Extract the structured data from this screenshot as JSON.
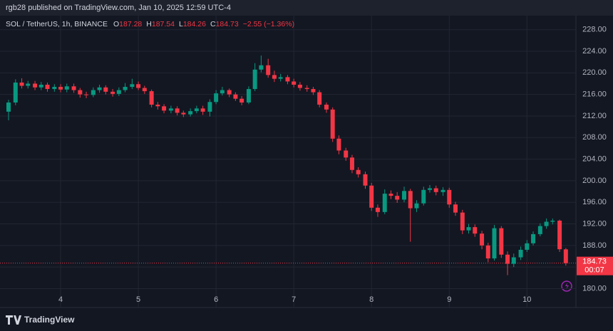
{
  "header": {
    "publisher": "rgb28 published on TradingView.com, Jan 10, 2025 12:59 UTC-4",
    "brand": "TradingView"
  },
  "chart_data": {
    "type": "candlestick",
    "symbol": "SOL / TetherUS, 1h, BINANCE",
    "ohlc_labels": [
      "O",
      "H",
      "L",
      "C"
    ],
    "change": "−2.55 (−1.36%)",
    "countdown": "00:07",
    "up_color": "#089981",
    "down_color": "#f23645",
    "grid": true,
    "xlim": [
      3.22,
      10.63
    ],
    "xticks": [
      4,
      5,
      6,
      7,
      8,
      9,
      10
    ],
    "ylim": [
      176.5,
      230.6
    ],
    "yticks": [
      {
        "value": 180,
        "label": "180.00"
      },
      {
        "value": 184,
        "label": "184.00"
      },
      {
        "value": 188,
        "label": "188.00"
      },
      {
        "value": 192,
        "label": "192.00"
      },
      {
        "value": 196,
        "label": "196.00"
      },
      {
        "value": 200,
        "label": "200.00"
      },
      {
        "value": 204,
        "label": "204.00"
      },
      {
        "value": 208,
        "label": "208.00"
      },
      {
        "value": 212,
        "label": "212.00"
      },
      {
        "value": 216,
        "label": "216.00"
      },
      {
        "value": 220,
        "label": "220.00"
      },
      {
        "value": 224,
        "label": "224.00"
      },
      {
        "value": 228,
        "label": "228.00"
      }
    ],
    "x": [
      3.33,
      3.42,
      3.5,
      3.58,
      3.67,
      3.75,
      3.83,
      3.92,
      4,
      4.08,
      4.17,
      4.25,
      4.33,
      4.42,
      4.5,
      4.58,
      4.67,
      4.75,
      4.83,
      4.92,
      5,
      5.08,
      5.17,
      5.25,
      5.33,
      5.42,
      5.5,
      5.58,
      5.67,
      5.75,
      5.83,
      5.92,
      6,
      6.08,
      6.17,
      6.25,
      6.33,
      6.42,
      6.5,
      6.58,
      6.67,
      6.75,
      6.83,
      6.92,
      7,
      7.08,
      7.17,
      7.25,
      7.33,
      7.42,
      7.5,
      7.58,
      7.67,
      7.75,
      7.83,
      7.92,
      8,
      8.08,
      8.17,
      8.25,
      8.33,
      8.42,
      8.5,
      8.58,
      8.67,
      8.75,
      8.83,
      8.92,
      9,
      9.08,
      9.17,
      9.25,
      9.33,
      9.42,
      9.5,
      9.58,
      9.67,
      9.75,
      9.83,
      9.92,
      10,
      10.08,
      10.17,
      10.25,
      10.33,
      10.42,
      10.5
    ],
    "open": [
      212.8,
      214.5,
      218.2,
      217.6,
      218.0,
      217.3,
      217.8,
      217.0,
      217.4,
      216.9,
      217.5,
      216.8,
      216.0,
      215.9,
      216.8,
      217.3,
      216.5,
      216.1,
      216.8,
      217.4,
      217.9,
      217.2,
      216.6,
      214.1,
      213.8,
      213.0,
      213.4,
      212.6,
      212.3,
      212.9,
      213.4,
      212.8,
      214.6,
      216.2,
      216.8,
      216.0,
      215.2,
      214.5,
      217.0,
      220.6,
      221.4,
      219.6,
      218.9,
      219.2,
      218.4,
      217.8,
      217.2,
      217.0,
      216.4,
      214.1,
      213.2,
      207.8,
      205.6,
      204.3,
      202.0,
      201.2,
      199.1,
      195.0,
      194.2,
      197.6,
      197.2,
      196.5,
      198.1,
      194.9,
      195.8,
      198.3,
      198.6,
      197.9,
      198.3,
      195.6,
      194.1,
      190.8,
      191.4,
      190.2,
      188.0,
      185.6,
      191.2,
      186.3,
      184.6,
      185.8,
      187.2,
      188.4,
      190.1,
      191.6,
      192.4,
      192.6,
      187.28
    ],
    "high": [
      215,
      218.8,
      219,
      218.5,
      218.5,
      218.3,
      218.2,
      217.9,
      217.9,
      218,
      218,
      217.2,
      216.5,
      217.3,
      217.8,
      217.7,
      217,
      217.3,
      218.1,
      218.9,
      218.4,
      217.6,
      216.9,
      214.6,
      214.2,
      213.9,
      213.8,
      213,
      213.4,
      213.9,
      213.9,
      215.1,
      216.8,
      217.4,
      217.1,
      216.4,
      215.7,
      217.5,
      221.8,
      223.2,
      222.6,
      220.4,
      219.8,
      219.6,
      218.9,
      218.3,
      217.7,
      217.4,
      216.8,
      214.5,
      213.6,
      208.4,
      206.1,
      204.8,
      202.5,
      201.7,
      199.6,
      195.6,
      198.4,
      198.2,
      197.9,
      198.9,
      198.5,
      196.4,
      198.9,
      199.2,
      199.1,
      198.8,
      198.7,
      196.1,
      194.6,
      192,
      191.9,
      190.7,
      188.5,
      191.8,
      191.6,
      186.9,
      186.5,
      187.8,
      189,
      190.6,
      192.1,
      193,
      193,
      192.8,
      187.54
    ],
    "low": [
      211.2,
      214,
      217.1,
      217.1,
      216.8,
      216.8,
      216.5,
      216.5,
      216.4,
      216.4,
      216.3,
      215.4,
      215.3,
      215.5,
      216.3,
      216,
      215.6,
      215.7,
      216.4,
      217,
      216.8,
      216.1,
      213.6,
      213.2,
      212.5,
      212.5,
      212.1,
      211.8,
      211.9,
      212.5,
      212.2,
      211.9,
      214.2,
      215.8,
      215.5,
      214.8,
      214,
      214.2,
      216.6,
      220.1,
      219.1,
      218.3,
      218.4,
      217.9,
      217.3,
      216.7,
      216.5,
      215.9,
      213.6,
      212.6,
      207.2,
      204.9,
      203.7,
      201.4,
      200.6,
      198.5,
      194.4,
      193.3,
      193.8,
      196.6,
      195.9,
      196,
      188.7,
      194.2,
      195.4,
      197.8,
      197.3,
      197.2,
      195,
      193.5,
      190.1,
      190.2,
      189.6,
      187.3,
      184.9,
      185.2,
      185.7,
      182.5,
      184,
      185.3,
      186.8,
      188,
      189.7,
      191.1,
      191.9,
      186.8,
      184.26
    ],
    "close": [
      214.5,
      218.2,
      217.6,
      218.0,
      217.3,
      217.8,
      217.0,
      217.4,
      216.9,
      217.5,
      216.8,
      216.0,
      215.9,
      216.8,
      217.3,
      216.5,
      216.1,
      216.8,
      217.4,
      217.9,
      217.2,
      216.6,
      214.1,
      213.8,
      213.0,
      213.4,
      212.6,
      212.3,
      212.9,
      213.4,
      212.8,
      214.6,
      216.2,
      216.8,
      216.0,
      215.2,
      214.5,
      217.0,
      220.6,
      221.4,
      219.6,
      218.9,
      219.2,
      218.4,
      217.8,
      217.2,
      217.0,
      216.4,
      214.1,
      213.2,
      207.8,
      205.6,
      204.3,
      202.0,
      201.2,
      199.1,
      195.0,
      194.2,
      197.6,
      197.2,
      196.5,
      198.1,
      194.9,
      195.8,
      198.3,
      198.6,
      197.9,
      198.3,
      195.6,
      194.1,
      190.8,
      191.4,
      190.2,
      188.0,
      185.6,
      191.2,
      186.3,
      184.6,
      185.8,
      187.2,
      188.4,
      190.1,
      191.6,
      192.4,
      192.6,
      187.3,
      184.73
    ]
  }
}
